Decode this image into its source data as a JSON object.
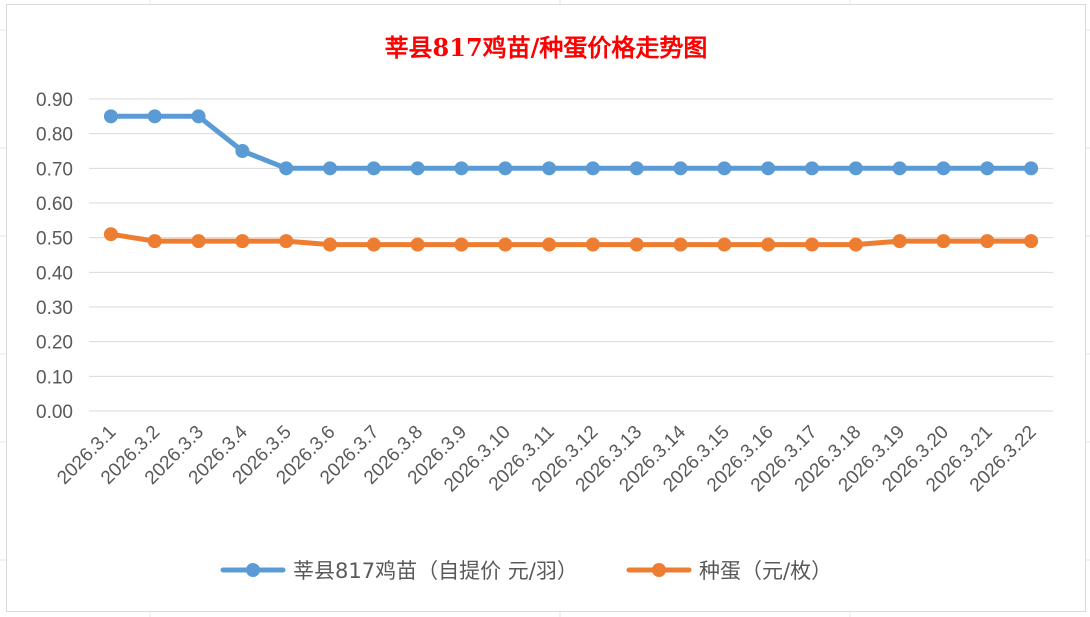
{
  "chart_data": {
    "type": "line",
    "title": "莘县817鸡苗/种蛋价格走势图",
    "categories": [
      "2026.3.1",
      "2026.3.2",
      "2026.3.3",
      "2026.3.4",
      "2026.3.5",
      "2026.3.6",
      "2026.3.7",
      "2026.3.8",
      "2026.3.9",
      "2026.3.10",
      "2026.3.11",
      "2026.3.12",
      "2026.3.13",
      "2026.3.14",
      "2026.3.15",
      "2026.3.16",
      "2026.3.17",
      "2026.3.18",
      "2026.3.19",
      "2026.3.20",
      "2026.3.21",
      "2026.3.22"
    ],
    "yticks": [
      "0.00",
      "0.10",
      "0.20",
      "0.30",
      "0.40",
      "0.50",
      "0.60",
      "0.70",
      "0.80",
      "0.90"
    ],
    "ylim": [
      0,
      0.9
    ],
    "grid": true,
    "legend_position": "bottom",
    "series": [
      {
        "name": "莘县817鸡苗（自提价 元/羽）",
        "color": "#5b9bd5",
        "values": [
          0.85,
          0.85,
          0.85,
          0.75,
          0.7,
          0.7,
          0.7,
          0.7,
          0.7,
          0.7,
          0.7,
          0.7,
          0.7,
          0.7,
          0.7,
          0.7,
          0.7,
          0.7,
          0.7,
          0.7,
          0.7,
          0.7
        ]
      },
      {
        "name": "种蛋（元/枚）",
        "color": "#ed7d31",
        "values": [
          0.51,
          0.49,
          0.49,
          0.49,
          0.49,
          0.48,
          0.48,
          0.48,
          0.48,
          0.48,
          0.48,
          0.48,
          0.48,
          0.48,
          0.48,
          0.48,
          0.48,
          0.48,
          0.49,
          0.49,
          0.49,
          0.49
        ]
      }
    ]
  }
}
